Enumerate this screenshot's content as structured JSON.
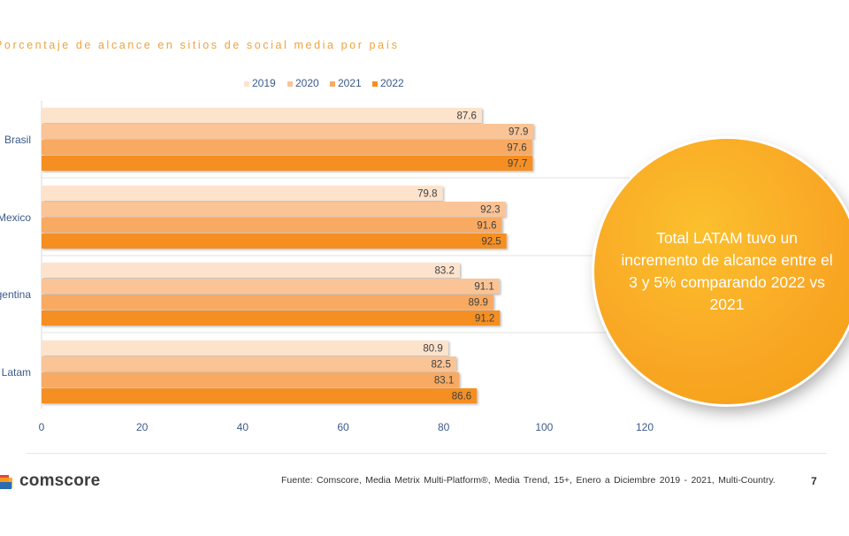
{
  "chart_data": {
    "type": "bar",
    "orientation": "horizontal",
    "title": "Porcentaje de alcance en sitios de social media por país",
    "categories": [
      "Brasil",
      "Mexico",
      "Argentina",
      "Latam"
    ],
    "series": [
      {
        "name": "2019",
        "color": "#fde3cc",
        "values": [
          87.6,
          79.8,
          83.2,
          80.9
        ]
      },
      {
        "name": "2020",
        "color": "#fac496",
        "values": [
          97.9,
          92.3,
          91.1,
          82.5
        ]
      },
      {
        "name": "2021",
        "color": "#f8aa62",
        "values": [
          97.6,
          91.6,
          89.9,
          83.1
        ]
      },
      {
        "name": "2022",
        "color": "#f58f22",
        "values": [
          97.7,
          92.5,
          91.2,
          86.6
        ]
      }
    ],
    "xlim": [
      0,
      120
    ],
    "xticks": [
      0,
      20,
      40,
      60,
      80,
      100,
      120
    ],
    "legend_position": "top",
    "grid": false,
    "data_labels": true
  },
  "callout": {
    "text": "Total LATAM tuvo un incremento de alcance entre el 3 y 5% comparando 2022 vs 2021",
    "color": "#f9a825"
  },
  "footer": {
    "logo_text": "comscore",
    "source": "Fuente: Comscore, Media Metrix Multi-Platform®, Media Trend, 15+, Enero a Diciembre 2019 - 2021, Multi-Country.",
    "page_number": "7"
  }
}
